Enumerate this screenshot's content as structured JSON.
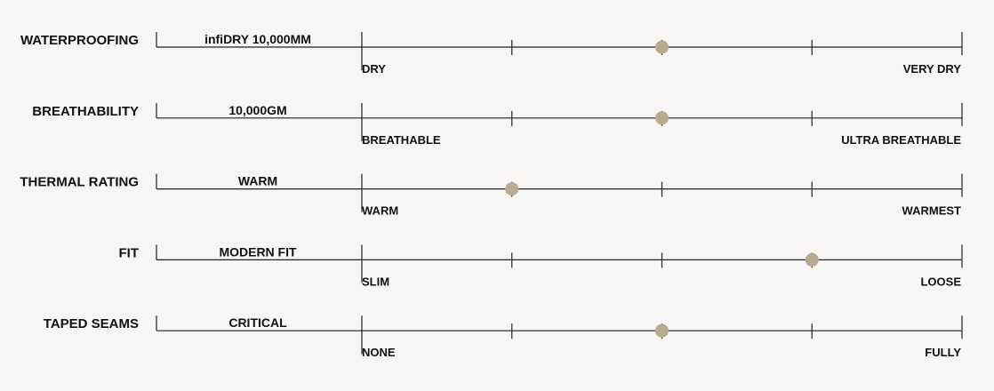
{
  "scale_points": [
    1,
    2,
    3,
    4,
    5
  ],
  "rows": [
    {
      "label": "WATERPROOFING",
      "value": "infiDRY 10,000MM",
      "low": "DRY",
      "high": "VERY DRY",
      "rating": 3
    },
    {
      "label": "BREATHABILITY",
      "value": "10,000GM",
      "low": "BREATHABLE",
      "high": "ULTRA BREATHABLE",
      "rating": 3
    },
    {
      "label": "THERMAL RATING",
      "value": "WARM",
      "low": "WARM",
      "high": "WARMEST",
      "rating": 2
    },
    {
      "label": "FIT",
      "value": "MODERN FIT",
      "low": "SLIM",
      "high": "LOOSE",
      "rating": 4
    },
    {
      "label": "TAPED SEAMS",
      "value": "CRITICAL",
      "low": "NONE",
      "high": "FULLY",
      "rating": 3
    }
  ]
}
